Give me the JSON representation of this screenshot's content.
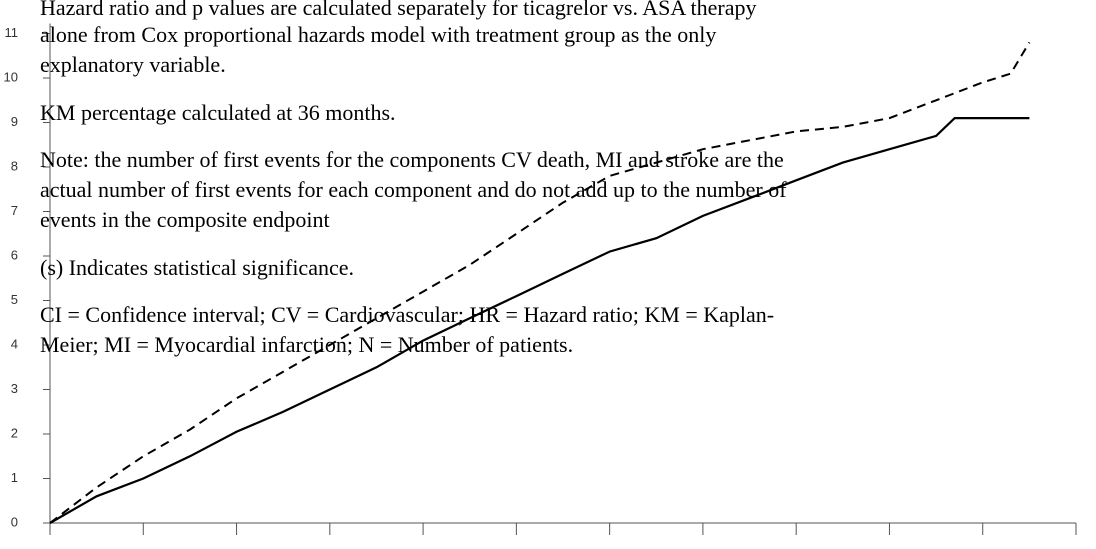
{
  "notes": [
    [
      "Hazard ratio and p values are calculated separately for ticagrelor vs. ASA therapy",
      "alone from Cox proportional hazards model with treatment group as the only",
      "explanatory variable."
    ],
    [
      "KM percentage calculated at 36 months."
    ],
    [
      "Note: the number of first events for the components CV death, MI and stroke are the",
      "actual number of first events for each component and do not add up to the number of",
      "events in the composite endpoint"
    ],
    [
      "(s) Indicates statistical significance."
    ],
    [
      "CI = Confidence interval; CV = Cardiovascular; HR = Hazard ratio; KM = Kaplan-",
      "Meier; MI = Myocardial infarction; N = Number of patients."
    ]
  ],
  "chart_data": {
    "type": "line",
    "xlim": [
      0,
      11
    ],
    "xticks": [
      0,
      1,
      2,
      3,
      4,
      5,
      6,
      7,
      8,
      9,
      10,
      11
    ],
    "ylim": [
      0,
      11
    ],
    "yticks": [
      0,
      1,
      2,
      3,
      4,
      5,
      6,
      7,
      8,
      9,
      10,
      11
    ],
    "series": [
      {
        "dash": true,
        "color": "#000000",
        "x": [
          0,
          0.5,
          1,
          1.5,
          2,
          2.5,
          3,
          3.5,
          4,
          4.5,
          5,
          5.5,
          6,
          6.5,
          7,
          7.5,
          8,
          8.5,
          9,
          9.5,
          10,
          10.3,
          10.5
        ],
        "values": [
          0,
          0.8,
          1.5,
          2.1,
          2.8,
          3.4,
          4.0,
          4.6,
          5.2,
          5.8,
          6.5,
          7.2,
          7.8,
          8.1,
          8.4,
          8.6,
          8.8,
          8.9,
          9.1,
          9.5,
          9.9,
          10.1,
          10.8
        ]
      },
      {
        "dash": false,
        "color": "#000000",
        "x": [
          0,
          0.5,
          1,
          1.5,
          2,
          2.5,
          3,
          3.5,
          4,
          4.5,
          5,
          5.5,
          6,
          6.5,
          7,
          7.5,
          8,
          8.5,
          9,
          9.5,
          9.7,
          10,
          10.5
        ],
        "values": [
          0,
          0.6,
          1.0,
          1.5,
          2.05,
          2.5,
          3.0,
          3.5,
          4.1,
          4.6,
          5.1,
          5.6,
          6.1,
          6.4,
          6.9,
          7.3,
          7.7,
          8.1,
          8.4,
          8.7,
          9.1,
          9.1,
          9.1
        ]
      }
    ]
  }
}
